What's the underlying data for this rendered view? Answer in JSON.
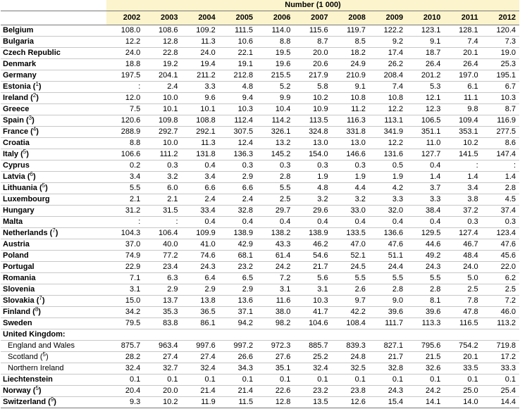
{
  "header": {
    "unit_label": "Number (1 000)",
    "years": [
      "2002",
      "2003",
      "2004",
      "2005",
      "2006",
      "2007",
      "2008",
      "2009",
      "2010",
      "2011",
      "2012"
    ]
  },
  "rows": [
    {
      "name": "Belgium",
      "note": "",
      "sub": false,
      "values": [
        "108.0",
        "108.6",
        "109.2",
        "111.5",
        "114.0",
        "115.6",
        "119.7",
        "122.2",
        "123.1",
        "128.1",
        "120.4"
      ]
    },
    {
      "name": "Bulgaria",
      "note": "",
      "sub": false,
      "values": [
        "12.2",
        "12.8",
        "11.3",
        "10.6",
        "8.8",
        "8.7",
        "8.5",
        "9.2",
        "9.1",
        "7.4",
        "7.3"
      ]
    },
    {
      "name": "Czech Republic",
      "note": "",
      "sub": false,
      "values": [
        "24.0",
        "22.8",
        "24.0",
        "22.1",
        "19.5",
        "20.0",
        "18.2",
        "17.4",
        "18.7",
        "20.1",
        "19.0"
      ]
    },
    {
      "name": "Denmark",
      "note": "",
      "sub": false,
      "values": [
        "18.8",
        "19.2",
        "19.4",
        "19.1",
        "19.6",
        "20.6",
        "24.9",
        "26.2",
        "26.4",
        "26.4",
        "25.3"
      ]
    },
    {
      "name": "Germany",
      "note": "",
      "sub": false,
      "values": [
        "197.5",
        "204.1",
        "211.2",
        "212.8",
        "215.5",
        "217.9",
        "210.9",
        "208.4",
        "201.2",
        "197.0",
        "195.1"
      ]
    },
    {
      "name": "Estonia (",
      "note": "1",
      "sub": false,
      "values": [
        ":",
        "2.4",
        "3.3",
        "4.8",
        "5.2",
        "5.8",
        "9.1",
        "7.4",
        "5.3",
        "6.1",
        "6.7"
      ]
    },
    {
      "name": "Ireland (",
      "note": "2",
      "sub": false,
      "values": [
        "12.0",
        "10.0",
        "9.6",
        "9.4",
        "9.9",
        "10.2",
        "10.8",
        "10.8",
        "12.1",
        "11.1",
        "10.3"
      ]
    },
    {
      "name": "Greece",
      "note": "",
      "sub": false,
      "values": [
        "7.5",
        "10.1",
        "10.1",
        "10.3",
        "10.4",
        "10.9",
        "11.2",
        "12.2",
        "12.3",
        "9.8",
        "8.7"
      ]
    },
    {
      "name": "Spain (",
      "note": "3",
      "sub": false,
      "values": [
        "120.6",
        "109.8",
        "108.8",
        "112.4",
        "114.2",
        "113.5",
        "116.3",
        "113.1",
        "106.5",
        "109.4",
        "116.9"
      ]
    },
    {
      "name": "France (",
      "note": "4",
      "sub": false,
      "values": [
        "288.9",
        "292.7",
        "292.1",
        "307.5",
        "326.1",
        "324.8",
        "331.8",
        "341.9",
        "351.1",
        "353.1",
        "277.5"
      ]
    },
    {
      "name": "Croatia",
      "note": "",
      "sub": false,
      "values": [
        "8.8",
        "10.0",
        "11.3",
        "12.4",
        "13.2",
        "13.0",
        "13.0",
        "12.2",
        "11.0",
        "10.2",
        "8.6"
      ]
    },
    {
      "name": "Italy (",
      "note": "5",
      "sub": false,
      "values": [
        "106.6",
        "111.2",
        "131.8",
        "136.3",
        "145.2",
        "154.0",
        "146.6",
        "131.6",
        "127.7",
        "141.5",
        "147.4"
      ]
    },
    {
      "name": "Cyprus",
      "note": "",
      "sub": false,
      "values": [
        "0.2",
        "0.3",
        "0.4",
        "0.3",
        "0.3",
        "0.3",
        "0.3",
        "0.5",
        "0.4",
        ":",
        ":"
      ]
    },
    {
      "name": "Latvia (",
      "note": "6",
      "sub": false,
      "values": [
        "3.4",
        "3.2",
        "3.4",
        "2.9",
        "2.8",
        "1.9",
        "1.9",
        "1.9",
        "1.4",
        "1.4",
        "1.4"
      ]
    },
    {
      "name": "Lithuania (",
      "note": "5",
      "sub": false,
      "values": [
        "5.5",
        "6.0",
        "6.6",
        "6.6",
        "5.5",
        "4.8",
        "4.4",
        "4.2",
        "3.7",
        "3.4",
        "2.8"
      ]
    },
    {
      "name": "Luxembourg",
      "note": "",
      "sub": false,
      "values": [
        "2.1",
        "2.1",
        "2.4",
        "2.4",
        "2.5",
        "3.2",
        "3.2",
        "3.3",
        "3.3",
        "3.8",
        "4.5"
      ]
    },
    {
      "name": "Hungary",
      "note": "",
      "sub": false,
      "values": [
        "31.2",
        "31.5",
        "33.4",
        "32.8",
        "29.7",
        "29.6",
        "33.0",
        "32.0",
        "38.4",
        "37.2",
        "37.4"
      ]
    },
    {
      "name": "Malta",
      "note": "",
      "sub": false,
      "values": [
        ":",
        ":",
        "0.4",
        "0.4",
        "0.4",
        "0.4",
        "0.4",
        "0.4",
        "0.4",
        "0.3",
        "0.3"
      ]
    },
    {
      "name": "Netherlands (",
      "note": "7",
      "sub": false,
      "values": [
        "104.3",
        "106.4",
        "109.9",
        "138.9",
        "138.2",
        "138.9",
        "133.5",
        "136.6",
        "129.5",
        "127.4",
        "123.4"
      ]
    },
    {
      "name": "Austria",
      "note": "",
      "sub": false,
      "values": [
        "37.0",
        "40.0",
        "41.0",
        "42.9",
        "43.3",
        "46.2",
        "47.0",
        "47.6",
        "44.6",
        "46.7",
        "47.6"
      ]
    },
    {
      "name": "Poland",
      "note": "",
      "sub": false,
      "values": [
        "74.9",
        "77.2",
        "74.6",
        "68.1",
        "61.4",
        "54.6",
        "52.1",
        "51.1",
        "49.2",
        "48.4",
        "45.6"
      ]
    },
    {
      "name": "Portugal",
      "note": "",
      "sub": false,
      "values": [
        "22.9",
        "23.4",
        "24.3",
        "23.2",
        "24.2",
        "21.7",
        "24.5",
        "24.4",
        "24.3",
        "24.0",
        "22.0"
      ]
    },
    {
      "name": "Romania",
      "note": "",
      "sub": false,
      "values": [
        "7.1",
        "6.3",
        "6.4",
        "6.5",
        "7.2",
        "5.6",
        "5.5",
        "5.5",
        "5.5",
        "5.0",
        "6.2"
      ]
    },
    {
      "name": "Slovenia",
      "note": "",
      "sub": false,
      "values": [
        "3.1",
        "2.9",
        "2.9",
        "2.9",
        "3.1",
        "3.1",
        "2.6",
        "2.8",
        "2.8",
        "2.5",
        "2.5"
      ]
    },
    {
      "name": "Slovakia (",
      "note": "7",
      "sub": false,
      "values": [
        "15.0",
        "13.7",
        "13.8",
        "13.6",
        "11.6",
        "10.3",
        "9.7",
        "9.0",
        "8.1",
        "7.8",
        "7.2"
      ]
    },
    {
      "name": "Finland (",
      "note": "8",
      "sub": false,
      "values": [
        "34.2",
        "35.3",
        "36.5",
        "37.1",
        "38.0",
        "41.7",
        "42.2",
        "39.6",
        "39.6",
        "47.8",
        "46.0"
      ]
    },
    {
      "name": "Sweden",
      "note": "",
      "sub": false,
      "values": [
        "79.5",
        "83.8",
        "86.1",
        "94.2",
        "98.2",
        "104.6",
        "108.4",
        "111.7",
        "113.3",
        "116.5",
        "113.2"
      ]
    },
    {
      "name": "United Kingdom:",
      "note": "",
      "sub": false,
      "values": [
        "",
        "",
        "",
        "",
        "",
        "",
        "",
        "",
        "",
        "",
        ""
      ]
    },
    {
      "name": "England and Wales",
      "note": "",
      "sub": true,
      "values": [
        "875.7",
        "963.4",
        "997.6",
        "997.2",
        "972.3",
        "885.7",
        "839.3",
        "827.1",
        "795.6",
        "754.2",
        "719.8"
      ]
    },
    {
      "name": "Scotland (",
      "note": "5",
      "sub": true,
      "values": [
        "28.2",
        "27.4",
        "27.4",
        "26.6",
        "27.6",
        "25.2",
        "24.8",
        "21.7",
        "21.5",
        "20.1",
        "17.2"
      ]
    },
    {
      "name": "Northern Ireland",
      "note": "",
      "sub": true,
      "values": [
        "32.4",
        "32.7",
        "32.4",
        "34.3",
        "35.1",
        "32.4",
        "32.5",
        "32.8",
        "32.6",
        "33.5",
        "33.3"
      ]
    },
    {
      "name": "Liechtenstein",
      "note": "",
      "sub": false,
      "values": [
        "0.1",
        "0.1",
        "0.1",
        "0.1",
        "0.1",
        "0.1",
        "0.1",
        "0.1",
        "0.1",
        "0.1",
        "0.1"
      ]
    },
    {
      "name": "Norway (",
      "note": "5",
      "sub": false,
      "values": [
        "20.4",
        "20.0",
        "21.4",
        "21.4",
        "22.6",
        "23.2",
        "23.8",
        "24.3",
        "24.2",
        "25.0",
        "25.4"
      ]
    },
    {
      "name": "Switzerland (",
      "note": "9",
      "sub": false,
      "values": [
        "9.3",
        "10.2",
        "11.9",
        "11.5",
        "12.8",
        "13.5",
        "12.6",
        "15.4",
        "14.1",
        "14.0",
        "14.4"
      ]
    }
  ],
  "colors": {
    "header_fill": "#fbf4cc",
    "grid_line": "#c8c8c8"
  }
}
